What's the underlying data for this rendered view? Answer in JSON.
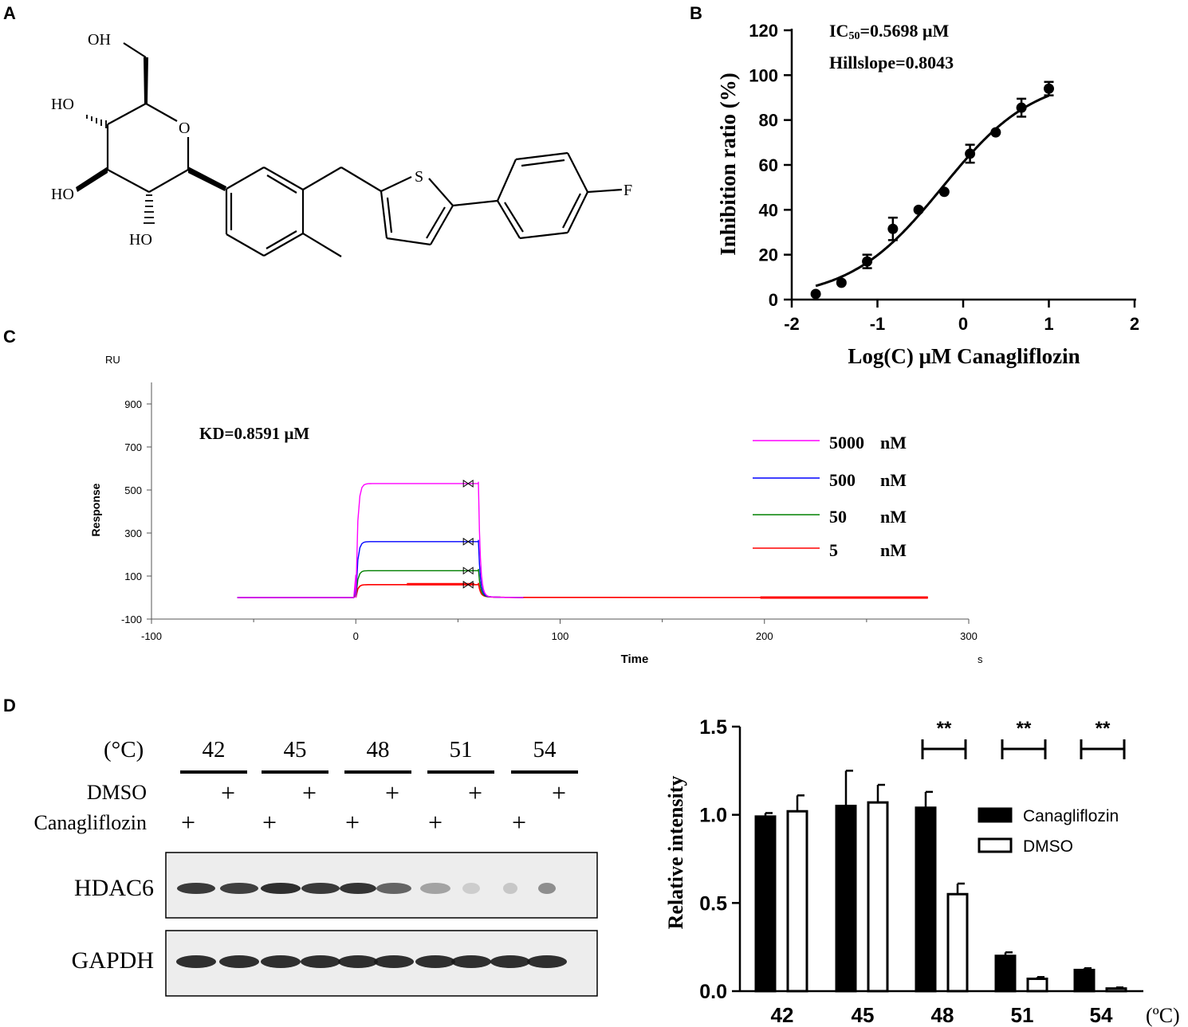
{
  "panels": {
    "A": {
      "letter": "A",
      "atoms": {
        "oh_top": "OH",
        "ho_1": "HO",
        "ho_2": "HO",
        "ho_3": "HO",
        "ring_o": "O",
        "s": "S",
        "f": "F"
      }
    },
    "B": {
      "letter": "B"
    },
    "C": {
      "letter": "C"
    },
    "D": {
      "letter": "D",
      "blot": {
        "temp_unit": "(°C)",
        "temperatures": [
          "42",
          "45",
          "48",
          "51",
          "54"
        ],
        "row_dmso": "DMSO",
        "row_cana": "Canagliflozin",
        "plus": "+",
        "bands": [
          "HDAC6",
          "GAPDH"
        ]
      }
    }
  },
  "chart_data": [
    {
      "panel": "B",
      "type": "scatter",
      "xlabel": "Log(C) μM Canagliflozin",
      "ylabel": "Inhibition ratio (%)",
      "xlim": [
        -2,
        2
      ],
      "ylim": [
        0,
        120
      ],
      "xticks": [
        "-2",
        "-1",
        "0",
        "1",
        "2"
      ],
      "yticks": [
        "0",
        "20",
        "40",
        "60",
        "80",
        "100",
        "120"
      ],
      "ic50_text": "IC",
      "ic50_sub": "50",
      "ic50_value": "=0.5698 μM",
      "hillslope_text": "Hillslope=0.8043",
      "fit": {
        "ic50_log": -0.2443,
        "hillslope": 0.8043
      },
      "x": [
        -1.72,
        -1.42,
        -1.12,
        -0.82,
        -0.52,
        -0.22,
        0.08,
        0.38,
        0.68,
        1.0
      ],
      "y": [
        2.5,
        7.5,
        17,
        31.5,
        40,
        48,
        65,
        74.5,
        85.5,
        94
      ],
      "err": [
        0,
        0,
        3,
        5,
        0,
        0,
        4,
        0,
        4,
        3
      ]
    },
    {
      "panel": "C",
      "type": "line",
      "unit_top": "RU",
      "xlabel": "Time",
      "ylabel": "Response",
      "x_unit": "s",
      "xlim": [
        -100,
        300
      ],
      "ylim": [
        -100,
        1000
      ],
      "xticks": [
        "-100",
        "0",
        "100",
        "200",
        "300"
      ],
      "yticks": [
        "-100",
        "100",
        "300",
        "500",
        "700",
        "900"
      ],
      "kd_text": "KD=0.8591 μM",
      "series": [
        {
          "name": "5000 nM",
          "conc": "5000",
          "unit": "nM",
          "color": "#ff00ff",
          "plateau": 530
        },
        {
          "name": "500 nM",
          "conc": "500",
          "unit": "nM",
          "color": "#0000ff",
          "plateau": 260
        },
        {
          "name": "50 nM",
          "conc": "50",
          "unit": "nM",
          "color": "#008000",
          "plateau": 125
        },
        {
          "name": "5 nM",
          "conc": "5",
          "unit": "nM",
          "color": "#ff0000",
          "plateau": 60
        }
      ],
      "injection_start": 0,
      "injection_end": 60,
      "baseline_start": -58,
      "trace_end": 280
    },
    {
      "panel": "D",
      "type": "bar",
      "ylabel": "Relative intensity",
      "x_unit": "(ºC)",
      "categories": [
        "42",
        "45",
        "48",
        "51",
        "54"
      ],
      "ylim": [
        0,
        1.5
      ],
      "yticks": [
        "0.0",
        "0.5",
        "1.0",
        "1.5"
      ],
      "series": [
        {
          "name": "Canagliflozin",
          "values": [
            0.99,
            1.05,
            1.04,
            0.2,
            0.12
          ],
          "err": [
            0.02,
            0.2,
            0.09,
            0.02,
            0.01
          ],
          "color": "#000000"
        },
        {
          "name": "DMSO",
          "values": [
            1.02,
            1.07,
            0.55,
            0.07,
            0.015
          ],
          "err": [
            0.09,
            0.1,
            0.06,
            0.01,
            0.006
          ],
          "color": "#ffffff"
        }
      ],
      "significance": [
        {
          "category": "48",
          "label": "**"
        },
        {
          "category": "51",
          "label": "**"
        },
        {
          "category": "54",
          "label": "**"
        }
      ]
    }
  ]
}
